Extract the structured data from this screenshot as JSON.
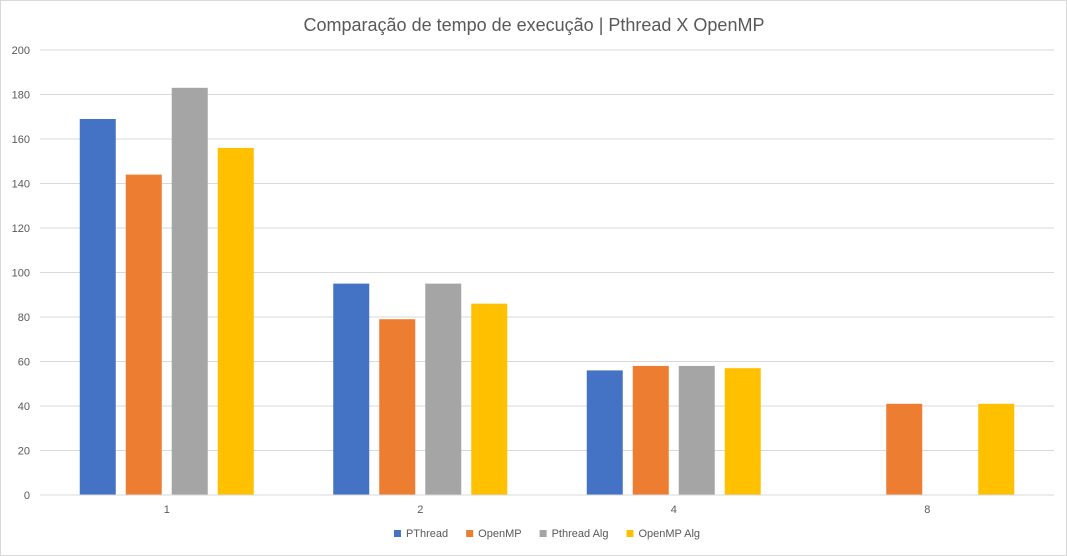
{
  "chart_data": {
    "type": "bar",
    "title": "Comparação de tempo de execução | Pthread X OpenMP",
    "categories": [
      "1",
      "2",
      "4",
      "8"
    ],
    "ylim": [
      0,
      200
    ],
    "ytick_step": 20,
    "yticks": [
      "0",
      "20",
      "40",
      "60",
      "80",
      "100",
      "120",
      "140",
      "160",
      "180",
      "200"
    ],
    "grid": true,
    "legend_position": "bottom",
    "series": [
      {
        "name": "PThread",
        "color": "#4472C4",
        "values": [
          169,
          95,
          56,
          null
        ]
      },
      {
        "name": "OpenMP",
        "color": "#ED7D31",
        "values": [
          144,
          79,
          58,
          41
        ]
      },
      {
        "name": "Pthread Alg",
        "color": "#A5A5A5",
        "values": [
          183,
          95,
          58,
          null
        ]
      },
      {
        "name": "OpenMP Alg",
        "color": "#FFC000",
        "values": [
          156,
          86,
          57,
          41
        ]
      }
    ]
  }
}
